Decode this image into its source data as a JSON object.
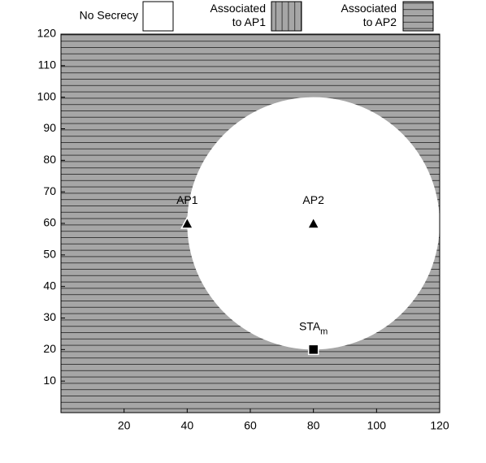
{
  "chart_data": {
    "type": "region",
    "legend": [
      {
        "label_lines": [
          "No Secrecy"
        ],
        "pattern": "none"
      },
      {
        "label_lines": [
          "Associated",
          "to AP1"
        ],
        "pattern": "vertical"
      },
      {
        "label_lines": [
          "Associated",
          "to AP2"
        ],
        "pattern": "horizontal"
      }
    ],
    "background_pattern": "horizontal",
    "region": {
      "center": [
        80,
        60
      ],
      "radius": 40,
      "pattern": "none"
    },
    "points": [
      {
        "label": "AP1",
        "x": 40,
        "y": 60,
        "marker": "triangle"
      },
      {
        "label": "AP2",
        "x": 80,
        "y": 60,
        "marker": "triangle"
      },
      {
        "label": "STA",
        "label_subscript": "m",
        "x": 80,
        "y": 20,
        "marker": "square"
      }
    ],
    "xlim": [
      0,
      120
    ],
    "ylim": [
      0,
      120
    ],
    "xticks": [
      20,
      40,
      60,
      80,
      100,
      120
    ],
    "yticks": [
      10,
      20,
      30,
      40,
      50,
      60,
      70,
      80,
      90,
      100,
      110,
      120
    ]
  }
}
